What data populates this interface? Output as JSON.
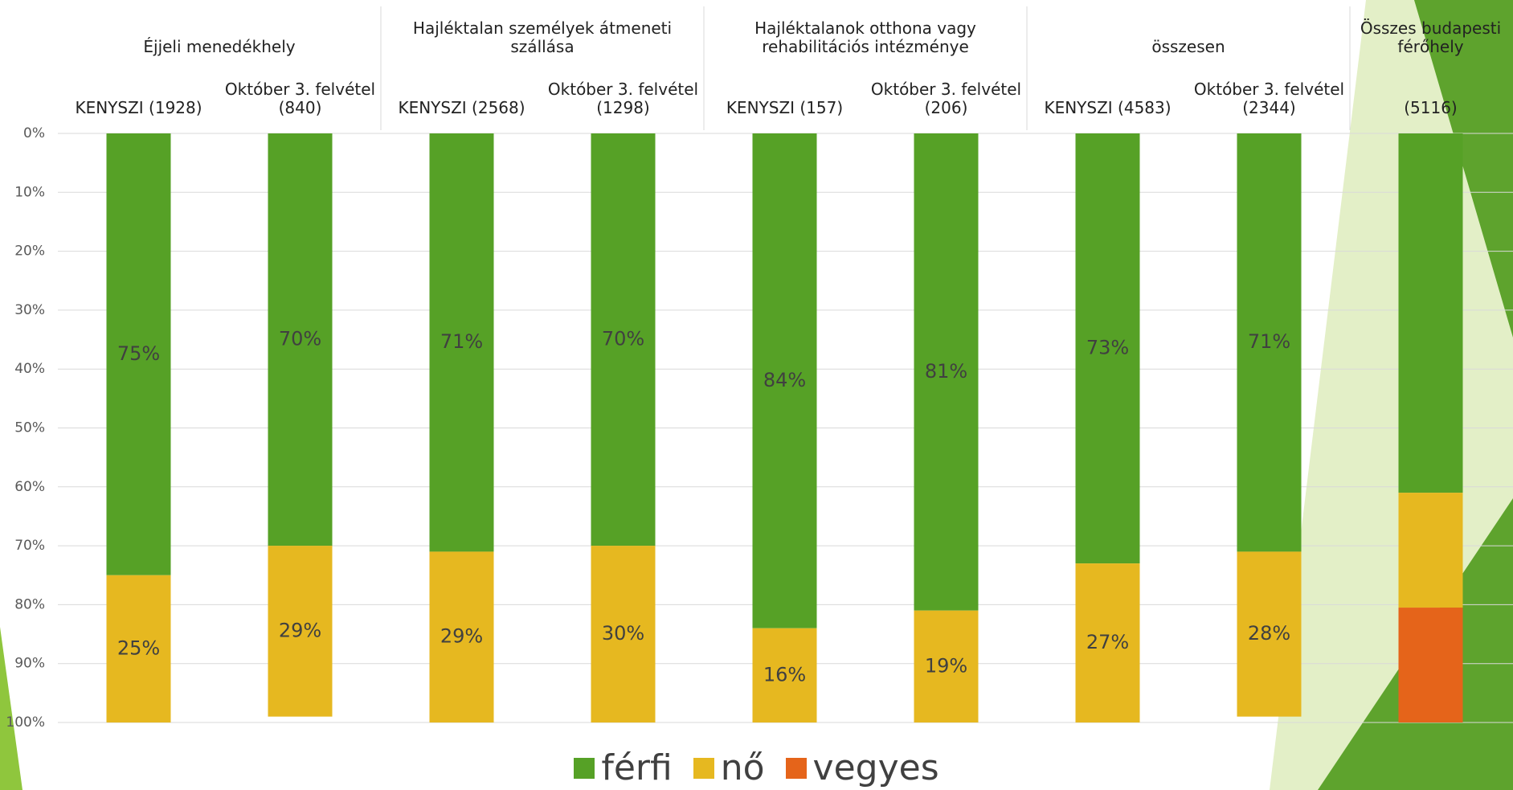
{
  "chart_data": {
    "type": "stacked_bar",
    "groups": [
      {
        "label": "Éjjeli menedékhely",
        "categories": [
          "KENYSZI (1928)",
          "Október 3. felvétel (840)"
        ]
      },
      {
        "label": "Hajléktalan személyek átmeneti szállása",
        "categories": [
          "KENYSZI (2568)",
          "Október 3. felvétel (1298)"
        ]
      },
      {
        "label": "Hajléktalanok otthona vagy rehabilitációs intézménye",
        "categories": [
          "KENYSZI (157)",
          "Október 3. felvétel (206)"
        ]
      },
      {
        "label": "összesen",
        "categories": [
          "KENYSZI (4583)",
          "Október 3. felvétel (2344)"
        ]
      },
      {
        "label": "Összes budapesti férőhely",
        "categories": [
          "(5116)"
        ]
      }
    ],
    "series": [
      {
        "name": "férfi",
        "color": "#56a126",
        "values": [
          75,
          70,
          71,
          70,
          84,
          81,
          73,
          71,
          61
        ],
        "value_labels": [
          "75%",
          "70%",
          "71%",
          "70%",
          "84%",
          "81%",
          "73%",
          "71%",
          null
        ]
      },
      {
        "name": "nő",
        "color": "#e6b820",
        "values": [
          25,
          29,
          29,
          30,
          16,
          19,
          27,
          28,
          19.5
        ],
        "value_labels": [
          "25%",
          "29%",
          "29%",
          "30%",
          "16%",
          "19%",
          "27%",
          "28%",
          null
        ]
      },
      {
        "name": "vegyes",
        "color": "#e5641a",
        "values": [
          0,
          0,
          0,
          0,
          0,
          0,
          0,
          0,
          19.5
        ],
        "value_labels": [
          null,
          null,
          null,
          null,
          null,
          null,
          null,
          null,
          null
        ]
      }
    ],
    "ylim": [
      100,
      0
    ],
    "yticks": [
      {
        "value": 0,
        "label": "0%"
      },
      {
        "value": 10,
        "label": "10%"
      },
      {
        "value": 20,
        "label": "20%"
      },
      {
        "value": 30,
        "label": "30%"
      },
      {
        "value": 40,
        "label": "40%"
      },
      {
        "value": 50,
        "label": "50%"
      },
      {
        "value": 60,
        "label": "60%"
      },
      {
        "value": 70,
        "label": "70%"
      },
      {
        "value": 80,
        "label": "80%"
      },
      {
        "value": 90,
        "label": "90%"
      },
      {
        "value": 100,
        "label": "100%"
      }
    ],
    "grid": true,
    "legend": "bottom"
  }
}
